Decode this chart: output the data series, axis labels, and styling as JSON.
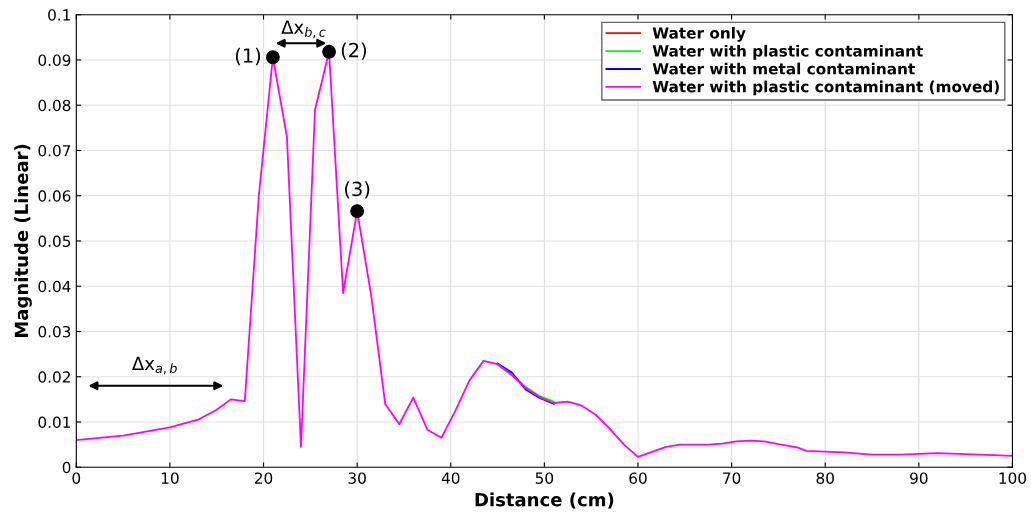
{
  "chart_data": {
    "type": "line",
    "xlabel": "Distance (cm)",
    "ylabel": "Magnitude (Linear)",
    "xlim": [
      0,
      100
    ],
    "ylim": [
      0,
      0.1
    ],
    "xticks": [
      0,
      10,
      20,
      30,
      40,
      50,
      60,
      70,
      80,
      90,
      100
    ],
    "yticks": [
      0,
      0.01,
      0.02,
      0.03,
      0.04,
      0.05,
      0.06,
      0.07,
      0.08,
      0.09,
      0.1
    ],
    "grid": true,
    "legend": "top right",
    "marker": "none",
    "line_style": "solid",
    "x": [
      0,
      5,
      10,
      13,
      15,
      16.5,
      18,
      19.5,
      21,
      22.5,
      24,
      25.5,
      27,
      28.5,
      30,
      31.5,
      33,
      34.5,
      36,
      37.5,
      39,
      40.5,
      42,
      43.5,
      45,
      46.5,
      48,
      49.5,
      51,
      52.5,
      54,
      55.5,
      57,
      58.5,
      60,
      63,
      64.5,
      67.5,
      69,
      70.5,
      72,
      73.5,
      75,
      77,
      78,
      82,
      85,
      88,
      92,
      95,
      100
    ],
    "series": [
      {
        "name": "Water only",
        "color": "#ff0000",
        "values": [
          null,
          null,
          null,
          null,
          null,
          null,
          null,
          null,
          null,
          null,
          null,
          null,
          null,
          null,
          null,
          null,
          null,
          null,
          null,
          null,
          null,
          null,
          null,
          null,
          null,
          null,
          null,
          null,
          null,
          null,
          null,
          null,
          null,
          null,
          null,
          null,
          null,
          null,
          null,
          null,
          null,
          null,
          null,
          null,
          null,
          null,
          null,
          null,
          null,
          null,
          null
        ]
      },
      {
        "name": "Water with plastic contaminant",
        "color": "#00ff00",
        "values": [
          null,
          null,
          null,
          null,
          null,
          null,
          null,
          null,
          null,
          null,
          null,
          null,
          null,
          null,
          null,
          null,
          null,
          null,
          null,
          null,
          null,
          null,
          null,
          null,
          0.0227,
          0.0203,
          0.0178,
          0.0157,
          0.0145,
          null,
          null,
          null,
          null,
          null,
          null,
          null,
          null,
          null,
          null,
          null,
          null,
          null,
          null,
          null,
          null,
          null,
          null,
          null,
          null,
          null,
          null
        ]
      },
      {
        "name": "Water with metal contaminant",
        "color": "#0000ff",
        "values": [
          null,
          null,
          null,
          null,
          null,
          null,
          null,
          null,
          null,
          null,
          null,
          null,
          null,
          null,
          null,
          null,
          null,
          null,
          null,
          null,
          null,
          null,
          null,
          null,
          0.0229,
          0.021,
          0.0172,
          0.0153,
          0.014,
          null,
          null,
          null,
          null,
          null,
          null,
          null,
          null,
          null,
          null,
          null,
          null,
          null,
          null,
          null,
          null,
          null,
          null,
          null,
          null,
          null,
          null
        ]
      },
      {
        "name": "Water with plastic contaminant (moved)",
        "color": "#ff00ff",
        "values": [
          0.006,
          0.007,
          0.0088,
          0.0105,
          0.0127,
          0.015,
          0.0146,
          0.06,
          0.0906,
          0.073,
          0.0045,
          0.079,
          0.0918,
          0.0385,
          0.0566,
          0.038,
          0.014,
          0.0095,
          0.0154,
          0.0083,
          0.0065,
          0.0125,
          0.0192,
          0.0235,
          0.0228,
          0.0205,
          0.0175,
          0.0155,
          0.0142,
          0.0145,
          0.0136,
          0.0116,
          0.0085,
          0.005,
          0.0023,
          0.0045,
          0.005,
          0.005,
          0.0052,
          0.0057,
          0.0059,
          0.0057,
          0.0051,
          0.0044,
          0.0036,
          0.0033,
          0.0028,
          0.0028,
          0.0031,
          0.0029,
          0.0025
        ]
      },
      {
        "type": "scatter",
        "color": "#000000",
        "marker": "circle",
        "x": [
          21,
          27,
          30
        ],
        "values": [
          0.0906,
          0.0918,
          0.0566
        ]
      }
    ],
    "annotations": [
      {
        "text": "(1)",
        "x": 21,
        "y": 0.0906
      },
      {
        "text": "(2)",
        "x": 27,
        "y": 0.0918
      },
      {
        "text": "(3)",
        "x": 30,
        "y": 0.0566
      },
      "Δx$_{a,b}$",
      "Δx$_{b,c}$"
    ]
  }
}
